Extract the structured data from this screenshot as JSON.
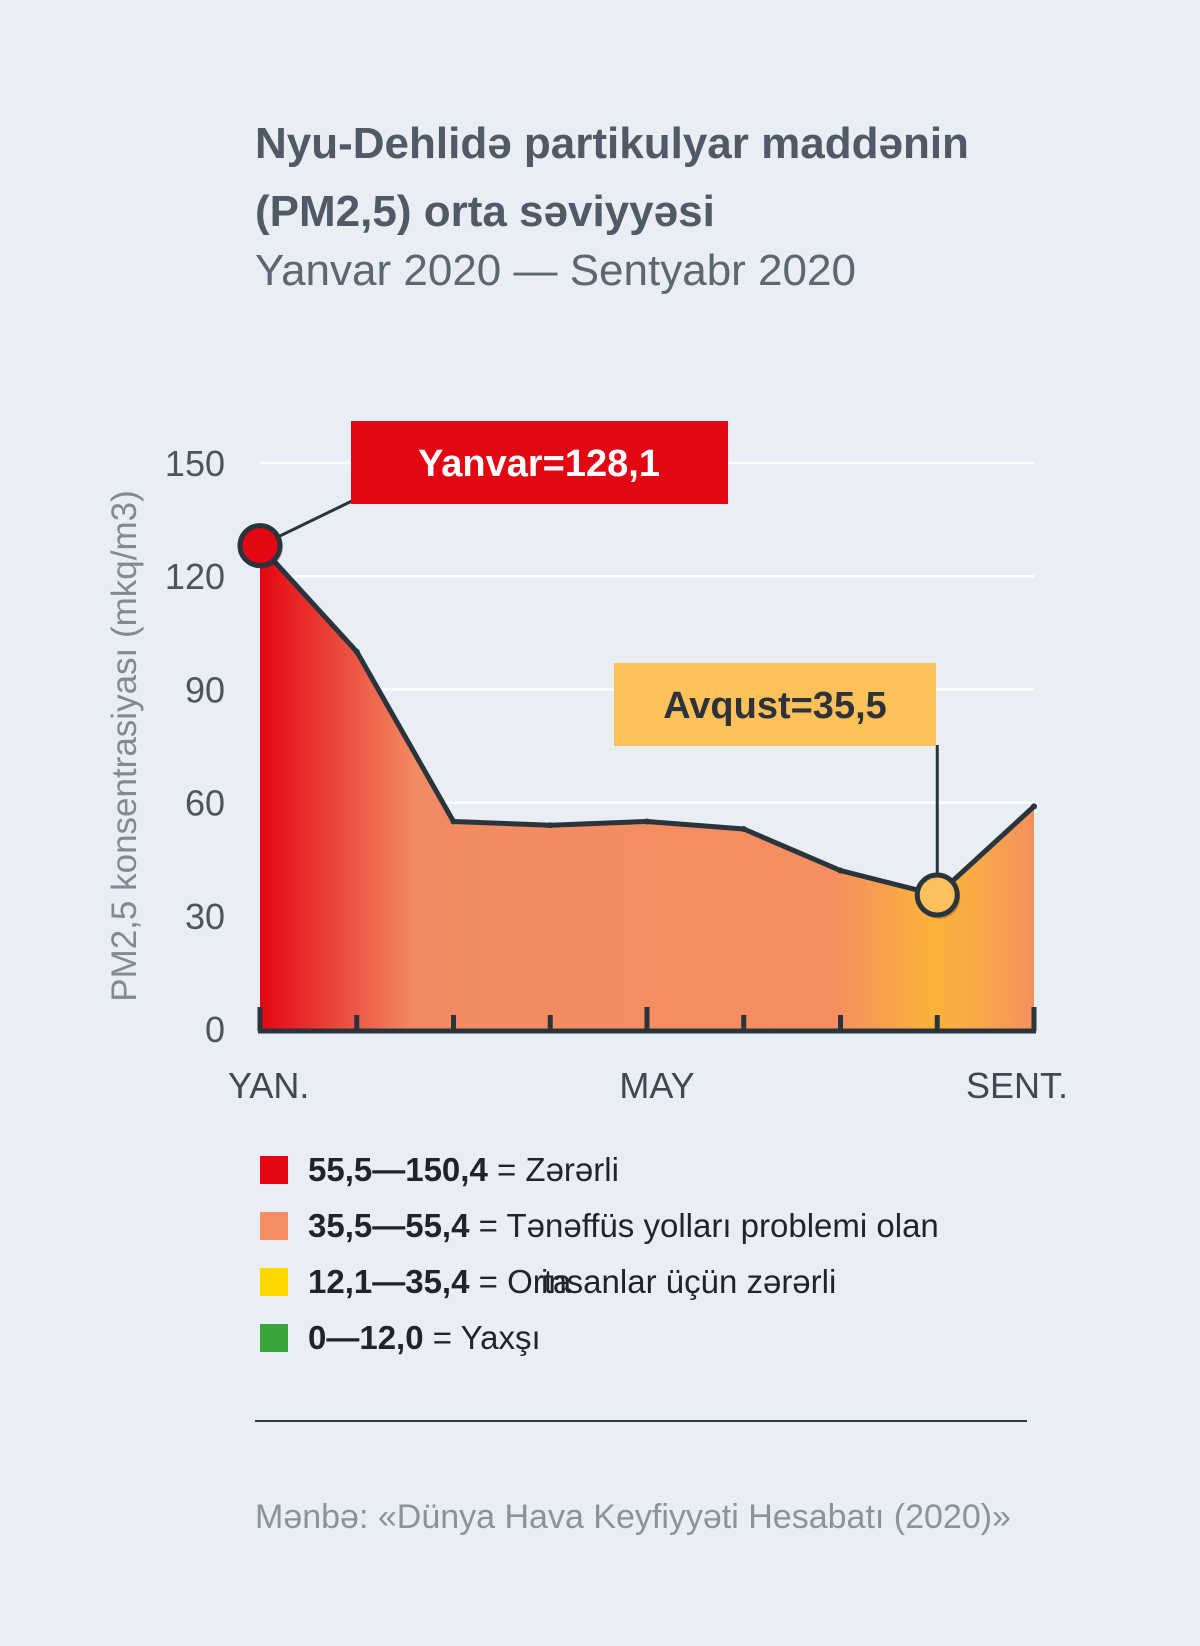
{
  "title": "Nyu-Dehlidə partikulyar maddənin (PM2,5) orta səviyyəsi",
  "subtitle": "Yanvar 2020 — Sentyabr 2020",
  "chart_data": {
    "type": "area",
    "ylabel": "PM2,5 konsentrasiyası (mkq/m3)",
    "ylim": [
      0,
      150
    ],
    "yticks": [
      "0",
      "30",
      "60",
      "90",
      "120",
      "150"
    ],
    "xticklabels": [
      {
        "i": 0,
        "label": "YAN."
      },
      {
        "i": 4,
        "label": "MAY"
      },
      {
        "i": 8,
        "label": "SENT."
      }
    ],
    "grid": true,
    "series": [
      {
        "values": [
          128.1,
          100,
          55,
          54,
          55,
          53,
          42,
          35.5,
          59
        ]
      }
    ],
    "annotations": [
      {
        "i": 0,
        "text": "Yanvar=128,1",
        "color": "#e30613",
        "textColor": "#ffffff",
        "pointColor": "#e30613"
      },
      {
        "i": 7,
        "text": "Avqust=35,5",
        "color": "#fcc15a",
        "textColor": "#2d3339",
        "pointColor": "#fdc05d"
      }
    ]
  },
  "legend": [
    {
      "range": "55,5—150,4",
      "label": "= Zərərli",
      "color": "#e30613"
    },
    {
      "range": "35,5—55,4",
      "label": "= Tənəffüs yolları problemi olan",
      "label2": "insanlar üçün zərərli",
      "color": "#f58f63"
    },
    {
      "range": "12,1—35,4",
      "label": "= Orta",
      "color": "#fdd800"
    },
    {
      "range": "0—12,0",
      "label": "= Yaxşı",
      "color": "#3aa53a"
    }
  ],
  "source": "Mənbə: «Dünya Hava Keyfiyyəti Hesabatı (2020)»"
}
